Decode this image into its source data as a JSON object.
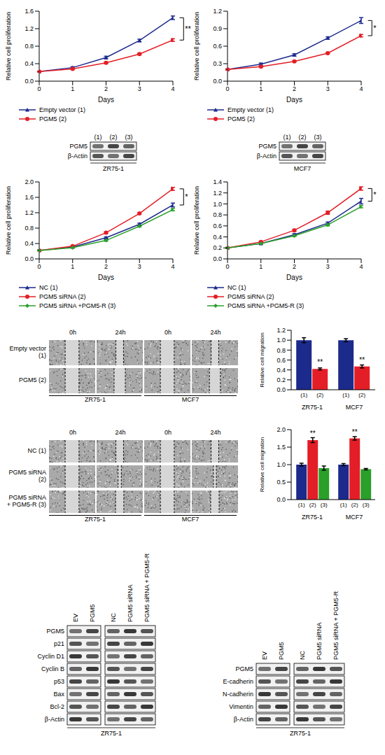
{
  "chart_data": [
    {
      "type": "line",
      "xlabel": "Days",
      "ylabel": "Relative cell proliferation",
      "x": [
        0,
        1,
        2,
        3,
        4
      ],
      "xlim": [
        0,
        4
      ],
      "xticks": [
        0,
        1,
        2,
        3,
        4
      ],
      "ylim": [
        0,
        1.6
      ],
      "yticks": [
        {
          "value": 0,
          "label": "0.0"
        },
        0.4,
        0.8,
        1.2,
        1.6
      ],
      "significance": "**",
      "series": [
        {
          "name": "Empty vector (1)",
          "color": "#1c2a8c",
          "marker": "triangle",
          "values": [
            0.22,
            0.31,
            0.54,
            0.93,
            1.45
          ],
          "errors": [
            0.01,
            0.02,
            0.03,
            0.03,
            0.04
          ]
        },
        {
          "name": "PGM5 (2)",
          "color": "#e41e26",
          "marker": "circle",
          "values": [
            0.22,
            0.28,
            0.42,
            0.62,
            0.94
          ],
          "errors": [
            0.01,
            0.01,
            0.02,
            0.02,
            0.03
          ]
        }
      ]
    },
    {
      "type": "line",
      "xlabel": "Days",
      "ylabel": "Relative cell proliferation",
      "x": [
        0,
        1,
        2,
        3,
        4
      ],
      "xlim": [
        0,
        4
      ],
      "xticks": [
        0,
        1,
        2,
        3,
        4
      ],
      "ylim": [
        0,
        1.2
      ],
      "yticks": [
        {
          "value": 0,
          "label": "0.0"
        },
        0.3,
        0.6,
        0.9,
        1.2
      ],
      "significance": "*",
      "series": [
        {
          "name": "Empty vector (1)",
          "color": "#1c2a8c",
          "marker": "triangle",
          "values": [
            0.2,
            0.29,
            0.45,
            0.74,
            1.04
          ],
          "errors": [
            0.01,
            0.02,
            0.02,
            0.02,
            0.05
          ]
        },
        {
          "name": "PGM5 (2)",
          "color": "#e41e26",
          "marker": "circle",
          "values": [
            0.2,
            0.25,
            0.34,
            0.48,
            0.78
          ],
          "errors": [
            0.01,
            0.01,
            0.01,
            0.01,
            0.02
          ]
        }
      ]
    },
    {
      "type": "line",
      "xlabel": "Days",
      "ylabel": "Relative cell proliferation",
      "x": [
        0,
        1,
        2,
        3,
        4
      ],
      "xlim": [
        0,
        4
      ],
      "xticks": [
        0,
        1,
        2,
        3,
        4
      ],
      "ylim": [
        0,
        2
      ],
      "yticks": [
        {
          "value": 0,
          "label": "0.0"
        },
        0.4,
        0.8,
        1.2,
        1.6,
        {
          "value": 2,
          "label": "2.0"
        }
      ],
      "significance": "*",
      "series": [
        {
          "name": "NC (1)",
          "color": "#1c2a8c",
          "marker": "triangle",
          "values": [
            0.22,
            0.31,
            0.55,
            0.9,
            1.4
          ],
          "errors": [
            0.01,
            0.02,
            0.02,
            0.03,
            0.05
          ]
        },
        {
          "name": "PGM5 siRNA (2)",
          "color": "#e41e26",
          "marker": "circle",
          "values": [
            0.22,
            0.33,
            0.68,
            1.18,
            1.82
          ],
          "errors": [
            0.01,
            0.02,
            0.02,
            0.02,
            0.04
          ]
        },
        {
          "name": "PGM5 siRNA +PGM5-R (3)",
          "color": "#2aa02b",
          "marker": "diamond",
          "values": [
            0.22,
            0.29,
            0.48,
            0.85,
            1.28
          ],
          "errors": [
            0.01,
            0.01,
            0.02,
            0.02,
            0.03
          ]
        }
      ]
    },
    {
      "type": "line",
      "xlabel": "Days",
      "ylabel": "Relative cell proliferation",
      "x": [
        0,
        1,
        2,
        3,
        4
      ],
      "xlim": [
        0,
        4
      ],
      "xticks": [
        0,
        1,
        2,
        3,
        4
      ],
      "ylim": [
        0,
        1.4
      ],
      "yticks": [
        {
          "value": 0,
          "label": "0.0"
        },
        0.2,
        0.4,
        0.6,
        0.8,
        {
          "value": 1,
          "label": "1.0"
        },
        1.2,
        1.4
      ],
      "significance": "*",
      "series": [
        {
          "name": "NC (1)",
          "color": "#1c2a8c",
          "marker": "triangle",
          "values": [
            0.2,
            0.28,
            0.44,
            0.65,
            1.05
          ],
          "errors": [
            0.01,
            0.01,
            0.02,
            0.02,
            0.05
          ]
        },
        {
          "name": "PGM5 siRNA (2)",
          "color": "#e41e26",
          "marker": "circle",
          "values": [
            0.2,
            0.31,
            0.52,
            0.84,
            1.28
          ],
          "errors": [
            0.01,
            0.01,
            0.02,
            0.03,
            0.03
          ]
        },
        {
          "name": "PGM5 siRNA +PGM5-R (3)",
          "color": "#2aa02b",
          "marker": "diamond",
          "values": [
            0.2,
            0.28,
            0.42,
            0.62,
            0.95
          ],
          "errors": [
            0.01,
            0.01,
            0.01,
            0.02,
            0.02
          ]
        }
      ]
    },
    {
      "type": "bar",
      "ylabel": "Relative cell migration",
      "categories": [
        "ZR75-1",
        "MCF7"
      ],
      "ylim": [
        0,
        1.2
      ],
      "yticks": [
        {
          "value": 0,
          "label": "0.0"
        },
        0.2,
        0.4,
        0.6,
        0.8,
        {
          "value": 1,
          "label": "1.0"
        },
        1.2
      ],
      "series": [
        {
          "name": "(1)",
          "color": "#1c2a8c",
          "values": [
            1.0,
            1.0
          ],
          "errors": [
            0.05,
            0.03
          ]
        },
        {
          "name": "(2)",
          "color": "#e41e26",
          "values": [
            0.42,
            0.47
          ],
          "errors": [
            0.02,
            0.03
          ],
          "significance": [
            "**",
            "**"
          ]
        }
      ]
    },
    {
      "type": "bar",
      "ylabel": "Relative cell migration",
      "categories": [
        "ZR75-1",
        "MCF7"
      ],
      "ylim": [
        0,
        2
      ],
      "yticks": [
        {
          "value": 0,
          "label": "0.0"
        },
        0.5,
        {
          "value": 1,
          "label": "1.0"
        },
        1.5,
        {
          "value": 2,
          "label": "2.0"
        }
      ],
      "series": [
        {
          "name": "(1)",
          "color": "#1c2a8c",
          "values": [
            1.0,
            1.0
          ],
          "errors": [
            0.04,
            0.03
          ]
        },
        {
          "name": "(2)",
          "color": "#e41e26",
          "values": [
            1.7,
            1.75
          ],
          "errors": [
            0.07,
            0.05
          ],
          "significance": [
            "**",
            "**"
          ]
        },
        {
          "name": "(3)",
          "color": "#2aa02b",
          "values": [
            0.9,
            0.87
          ],
          "errors": [
            0.06,
            0.02
          ]
        }
      ]
    }
  ],
  "small_blots": [
    {
      "caption": "ZR75-1",
      "lane_groups": [
        [
          "(1)",
          "(2)",
          "(3)"
        ]
      ],
      "rows": [
        "PGM5",
        "β-Actin"
      ]
    },
    {
      "caption": "MCF7",
      "lane_groups": [
        [
          "(1)",
          "(2)",
          "(3)"
        ]
      ],
      "rows": [
        "PGM5",
        "β-Actin"
      ]
    }
  ],
  "wound_images": [
    {
      "timepoints": [
        "0h",
        "24h"
      ],
      "cells": [
        "ZR75-1",
        "MCF7"
      ],
      "rows": [
        "Empty vector (1)",
        "PGM5 (2)"
      ]
    },
    {
      "timepoints": [
        "0h",
        "24h"
      ],
      "cells": [
        "ZR75-1",
        "MCF7"
      ],
      "rows": [
        "NC (1)",
        "PGM5 siRNA (2)",
        "PGM5 siRNA + PGM5-R (3)"
      ]
    }
  ],
  "blots": [
    {
      "caption": "ZR75-1",
      "lane_groups": [
        [
          "EV",
          "PGM5"
        ],
        [
          "NC",
          "PGM5 siRNA",
          "PGM5 siRNA + PGM5-R"
        ]
      ],
      "rows": [
        "PGM5",
        "p21",
        "Cyclin D1",
        "Cyclin B",
        "p53",
        "Bax",
        "Bcl-2",
        "β-Actin"
      ]
    },
    {
      "caption": "ZR75-1",
      "lane_groups": [
        [
          "EV",
          "PGM5"
        ],
        [
          "NC",
          "PGM5 siRNA",
          "PGM5 siRNA + PGM5-R"
        ]
      ],
      "rows": [
        "PGM5",
        "E-cadherin",
        "N-cadherin",
        "Vimentin",
        "β-Actin"
      ]
    }
  ]
}
